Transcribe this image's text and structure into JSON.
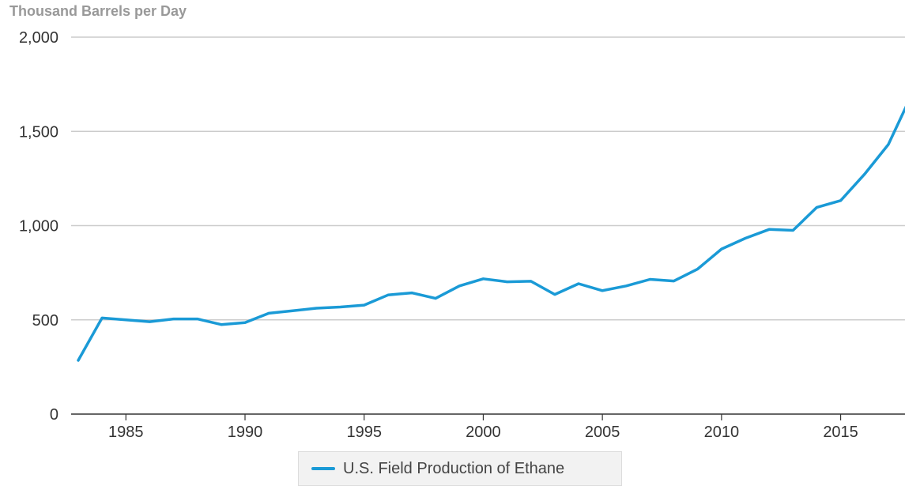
{
  "chart_data": {
    "type": "line",
    "title": "",
    "unit_label": "Thousand Barrels per Day",
    "xlabel": "",
    "ylabel": "Thousand Barrels per Day",
    "x": [
      1983,
      1984,
      1985,
      1986,
      1987,
      1988,
      1989,
      1990,
      1991,
      1992,
      1993,
      1994,
      1995,
      1996,
      1997,
      1998,
      1999,
      2000,
      2001,
      2002,
      2003,
      2004,
      2005,
      2006,
      2007,
      2008,
      2009,
      2010,
      2011,
      2012,
      2013,
      2014,
      2015,
      2016,
      2017,
      2018
    ],
    "series": [
      {
        "name": "U.S. Field Production of Ethane",
        "color": "#1a9ad6",
        "values": [
          285,
          510,
          500,
          490,
          505,
          505,
          475,
          485,
          535,
          548,
          562,
          568,
          578,
          632,
          643,
          614,
          680,
          718,
          702,
          705,
          635,
          692,
          655,
          680,
          715,
          706,
          770,
          876,
          933,
          980,
          975,
          1097,
          1133,
          1272,
          1430,
          1700
        ]
      }
    ],
    "xticks": [
      1985,
      1990,
      1995,
      2000,
      2005,
      2010,
      2015
    ],
    "xtick_labels": [
      "1985",
      "1990",
      "1995",
      "2000",
      "2005",
      "2010",
      "2015"
    ],
    "yticks": [
      0,
      500,
      1000,
      1500,
      2000
    ],
    "ytick_labels": [
      "0",
      "500",
      "1,000",
      "1,500",
      "2,000"
    ],
    "xlim": [
      1983,
      2018
    ],
    "ylim": [
      0,
      2000
    ],
    "grid": true,
    "legend_position": "bottom-center"
  }
}
